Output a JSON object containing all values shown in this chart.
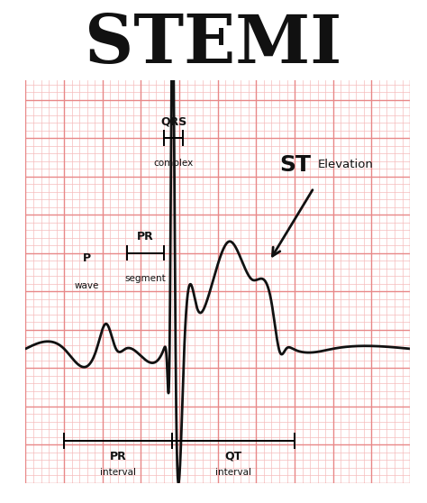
{
  "title": "STEMI",
  "title_fontsize": 54,
  "background_color": "#ffffff",
  "grid_minor_color": "#f5bcbc",
  "grid_major_color": "#e88888",
  "ecg_color": "#111111",
  "text_color": "#111111",
  "fig_width": 4.74,
  "fig_height": 5.58,
  "dpi": 100,
  "xlim": [
    0,
    10
  ],
  "ylim": [
    -3.5,
    7.0
  ]
}
